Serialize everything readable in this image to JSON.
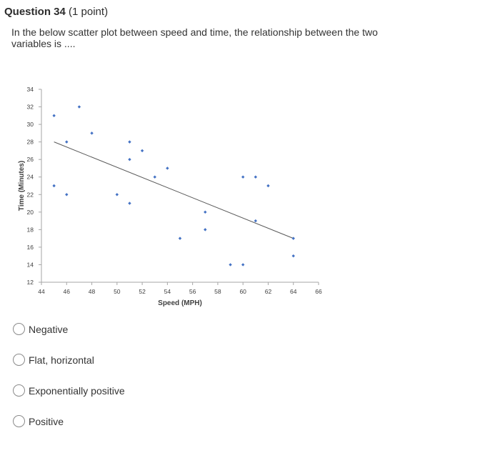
{
  "question": {
    "title": "Question 34",
    "points": "(1 point)",
    "text": "In the below scatter plot between speed and time, the relationship between the two variables is ...."
  },
  "chart_data": {
    "type": "scatter",
    "title": "",
    "xlabel": "Speed (MPH)",
    "ylabel": "Time (Minutes)",
    "xlim": [
      44,
      66
    ],
    "ylim": [
      12,
      34
    ],
    "xticks": [
      44,
      46,
      48,
      50,
      52,
      54,
      56,
      58,
      60,
      62,
      64,
      66
    ],
    "yticks": [
      12,
      14,
      16,
      18,
      20,
      22,
      24,
      26,
      28,
      30,
      32,
      34
    ],
    "grid": false,
    "legend": "none",
    "color": "#4472c4",
    "trendline_color": "#595959",
    "series": [
      {
        "x": [
          45,
          45,
          46,
          46,
          47,
          48,
          50,
          51,
          51,
          51,
          52,
          53,
          54,
          55,
          57,
          57,
          59,
          60,
          60,
          61,
          61,
          62,
          64,
          64
        ],
        "y": [
          31,
          23,
          28,
          22,
          32,
          29,
          22,
          28,
          26,
          21,
          27,
          24,
          25,
          17,
          20,
          18,
          14,
          24,
          14,
          24,
          19,
          23,
          17,
          15
        ]
      }
    ],
    "trendline": {
      "x": [
        45,
        64
      ],
      "y": [
        28,
        17
      ]
    }
  },
  "options": [
    {
      "label": "Negative"
    },
    {
      "label": "Flat, horizontal"
    },
    {
      "label": "Exponentially positive"
    },
    {
      "label": "Positive"
    }
  ]
}
